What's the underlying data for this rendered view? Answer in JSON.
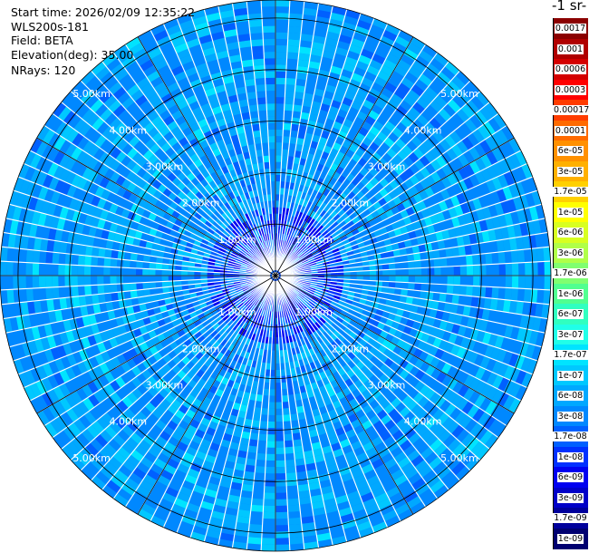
{
  "header": {
    "start_time": "Start time: 2026/02/09 12:35:22",
    "instrument": "WLS200s-181",
    "field": "Field: BETA",
    "elevation": "Elevation(deg): 35.00",
    "nrays": "NRays: 120"
  },
  "colorbar": {
    "title": "-1 sr-",
    "levels": [
      {
        "label": "0.0017",
        "color": "#8b0000"
      },
      {
        "label": "0.001",
        "color": "#b00000"
      },
      {
        "label": "0.0006",
        "color": "#d40000"
      },
      {
        "label": "0.0003",
        "color": "#ff0000"
      },
      {
        "label": "0.00017",
        "color": "#ff3c00"
      },
      {
        "label": "0.0001",
        "color": "#ff6a00"
      },
      {
        "label": "6e-05",
        "color": "#ff9000"
      },
      {
        "label": "3e-05",
        "color": "#ffb000"
      },
      {
        "label": "1.7e-05",
        "color": "#ffd000"
      },
      {
        "label": "1e-05",
        "color": "#ffff00"
      },
      {
        "label": "6e-06",
        "color": "#d8ff20"
      },
      {
        "label": "3e-06",
        "color": "#b0ff48"
      },
      {
        "label": "1.7e-06",
        "color": "#80ff70"
      },
      {
        "label": "1e-06",
        "color": "#50ff90"
      },
      {
        "label": "6e-07",
        "color": "#30ffc0"
      },
      {
        "label": "3e-07",
        "color": "#20ffe8"
      },
      {
        "label": "1.7e-07",
        "color": "#00e4ff"
      },
      {
        "label": "1e-07",
        "color": "#00c8ff"
      },
      {
        "label": "6e-08",
        "color": "#00a8ff"
      },
      {
        "label": "3e-08",
        "color": "#0088ff"
      },
      {
        "label": "1.7e-08",
        "color": "#0060ff"
      },
      {
        "label": "1e-08",
        "color": "#0030ff"
      },
      {
        "label": "6e-09",
        "color": "#0000f0"
      },
      {
        "label": "3e-09",
        "color": "#0000c8"
      },
      {
        "label": "1.7e-09",
        "color": "#00009c"
      },
      {
        "label": "1e-09",
        "color": "#000070"
      }
    ]
  },
  "chart_data": {
    "type": "heatmap",
    "projection": "polar",
    "field": "BETA",
    "nrays": 120,
    "range_rings_km": [
      1,
      2,
      3,
      4,
      5
    ],
    "range_labels": [
      "1.00km",
      "2.00km",
      "3.00km",
      "4.00km",
      "5.00km"
    ],
    "max_range_km": 5.35,
    "dominant_value_range": [
      3e-08,
      1.7e-07
    ],
    "near_range_value_range": [
      3e-09,
      3e-08
    ],
    "ray_gaps": "white gaps between rays",
    "radial_grid_deg": [
      0,
      30,
      60,
      90,
      120,
      150,
      180,
      210,
      240,
      270,
      300,
      330
    ]
  }
}
